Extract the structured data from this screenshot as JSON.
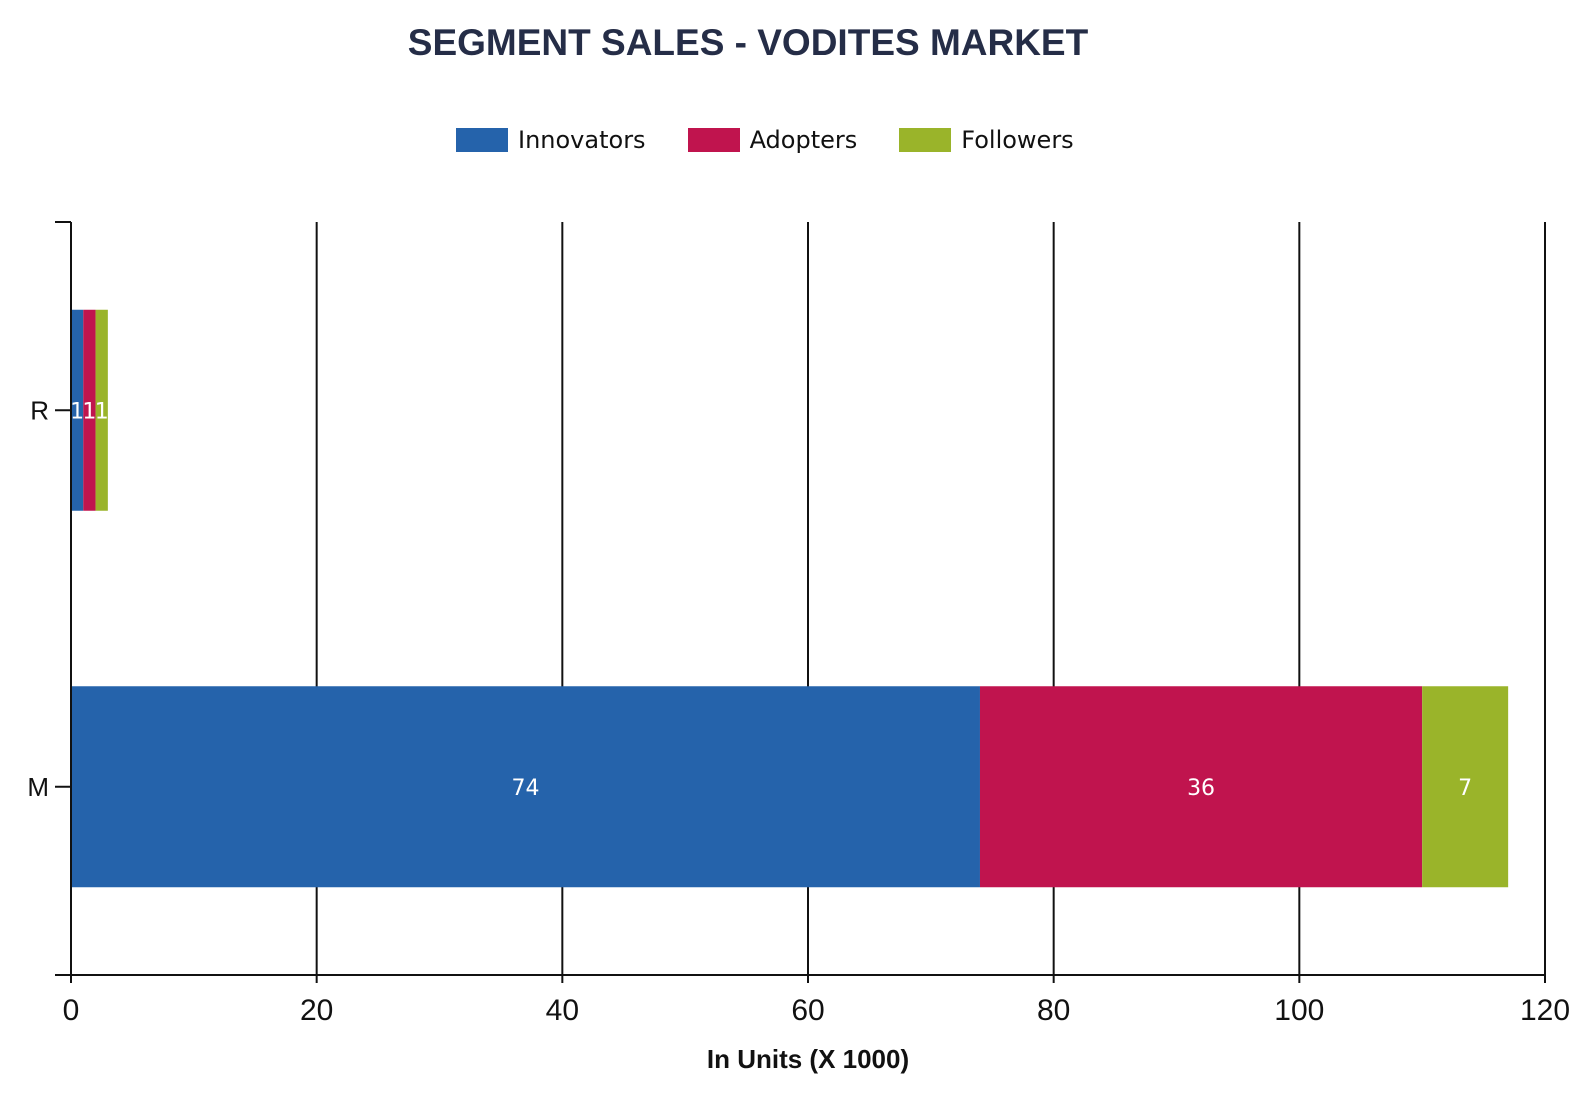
{
  "title": "SEGMENT SALES - VODITES MARKET",
  "legend": [
    {
      "label": "Innovators",
      "color": "#2563ab"
    },
    {
      "label": "Adopters",
      "color": "#c0144e"
    },
    {
      "label": "Followers",
      "color": "#9ab42a"
    }
  ],
  "x_axis": {
    "title": "In Units (X 1000)",
    "ticks": [
      "0",
      "20",
      "40",
      "60",
      "80",
      "100",
      "120"
    ]
  },
  "y_axis": {
    "categories": [
      "R",
      "M"
    ]
  },
  "chart_data": {
    "type": "bar",
    "orientation": "horizontal",
    "stacked": true,
    "title": "SEGMENT SALES - VODITES MARKET",
    "xlabel": "In Units (X 1000)",
    "ylabel": "",
    "categories": [
      "R",
      "M"
    ],
    "series": [
      {
        "name": "Innovators",
        "color": "#2563ab",
        "values": [
          1,
          74
        ]
      },
      {
        "name": "Adopters",
        "color": "#c0144e",
        "values": [
          1,
          36
        ]
      },
      {
        "name": "Followers",
        "color": "#9ab42a",
        "values": [
          1,
          7
        ]
      }
    ],
    "xlim": [
      0,
      120
    ],
    "x_ticks": [
      0,
      20,
      40,
      60,
      80,
      100,
      120
    ],
    "grid": {
      "vertical": true,
      "horizontal": false
    },
    "legend_position": "top",
    "data_labels": true
  }
}
